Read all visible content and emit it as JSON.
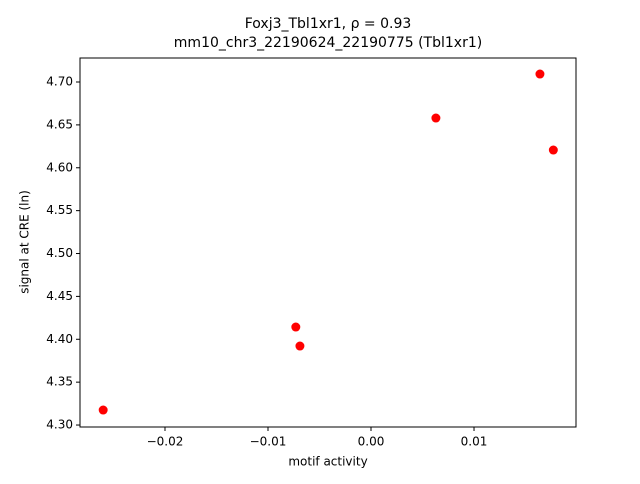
{
  "chart_data": {
    "type": "scatter",
    "title": "Foxj3_Tbl1xr1, ρ = 0.93",
    "subtitle": "mm10_chr3_22190624_22190775 (Tbl1xr1)",
    "x_label": "motif activity",
    "y_label": "signal at CRE (ln)",
    "color": "#ff0000",
    "x": [
      -0.026,
      -0.0073,
      -0.0069,
      0.0063,
      0.0164,
      0.0177
    ],
    "y": [
      4.3175,
      4.4143,
      4.3921,
      4.658,
      4.7093,
      4.6207
    ],
    "xlim": [
      -0.02825,
      0.0199
    ],
    "ylim": [
      4.2977,
      4.728
    ],
    "xticks": [
      {
        "value": -0.02,
        "label": "−0.02"
      },
      {
        "value": -0.01,
        "label": "−0.01"
      },
      {
        "value": 0,
        "label": "0.00"
      },
      0.01
    ],
    "yticks": [
      {
        "value": 4.3,
        "label": "4.30"
      },
      4.35,
      {
        "value": 4.4,
        "label": "4.40"
      },
      4.45,
      {
        "value": 4.5,
        "label": "4.50"
      },
      4.55,
      {
        "value": 4.6,
        "label": "4.60"
      },
      4.65,
      {
        "value": 4.7,
        "label": "4.70"
      }
    ]
  }
}
